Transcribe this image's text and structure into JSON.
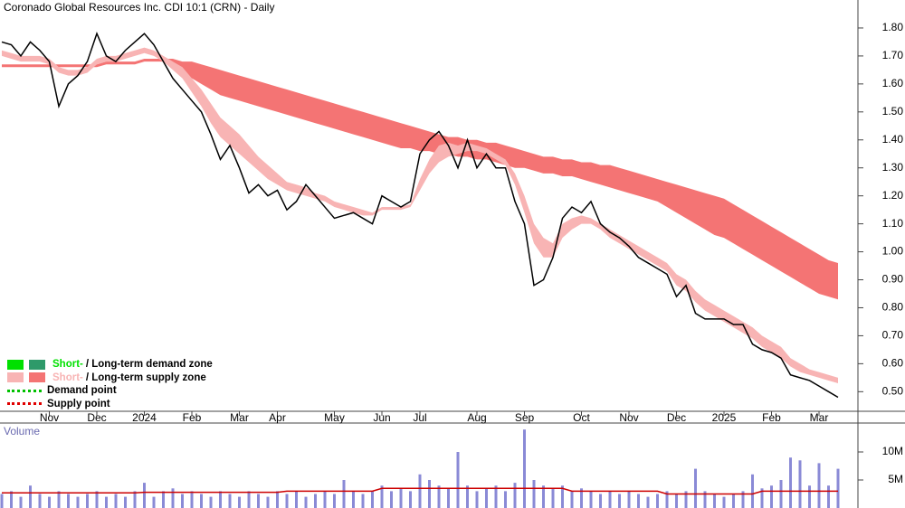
{
  "chart_data": [
    {
      "type": "line",
      "title": "Coronado Global Resources Inc. CDI 10:1 (CRN) - Daily",
      "categories": [
        null,
        null,
        null,
        null,
        null,
        "Nov",
        null,
        null,
        null,
        null,
        "Dec",
        null,
        null,
        null,
        null,
        "2024",
        null,
        null,
        null,
        null,
        "Feb",
        null,
        null,
        null,
        null,
        "Mar",
        null,
        null,
        null,
        "Apr",
        null,
        null,
        null,
        null,
        null,
        "May",
        null,
        null,
        null,
        null,
        "Jun",
        null,
        null,
        null,
        "Jul",
        null,
        null,
        null,
        null,
        null,
        "Aug",
        null,
        null,
        null,
        null,
        "Sep",
        null,
        null,
        null,
        null,
        null,
        "Oct",
        null,
        null,
        null,
        null,
        "Nov",
        null,
        null,
        null,
        null,
        "Dec",
        null,
        null,
        null,
        null,
        "2025",
        null,
        null,
        null,
        null,
        "Feb",
        null,
        null,
        null,
        null,
        "Mar",
        null,
        null
      ],
      "close": {
        "color": "#000000",
        "values": [
          1.75,
          1.74,
          1.7,
          1.75,
          1.72,
          1.68,
          1.52,
          1.6,
          1.63,
          1.68,
          1.78,
          1.7,
          1.68,
          1.72,
          1.75,
          1.78,
          1.74,
          1.68,
          1.62,
          1.58,
          1.54,
          1.5,
          1.42,
          1.33,
          1.38,
          1.3,
          1.21,
          1.24,
          1.2,
          1.22,
          1.15,
          1.18,
          1.24,
          1.2,
          1.16,
          1.12,
          1.13,
          1.14,
          1.12,
          1.1,
          1.2,
          1.18,
          1.16,
          1.18,
          1.35,
          1.4,
          1.43,
          1.38,
          1.3,
          1.4,
          1.3,
          1.35,
          1.3,
          1.3,
          1.18,
          1.1,
          0.88,
          0.9,
          0.98,
          1.12,
          1.16,
          1.14,
          1.18,
          1.1,
          1.07,
          1.05,
          1.02,
          0.98,
          0.96,
          0.94,
          0.92,
          0.84,
          0.88,
          0.78,
          0.76,
          0.76,
          0.76,
          0.74,
          0.74,
          0.67,
          0.65,
          0.64,
          0.62,
          0.56,
          0.55,
          0.54,
          0.52,
          0.5,
          0.48
        ]
      },
      "long_band": {
        "color": "#f47474",
        "upper": [
          1.67,
          1.67,
          1.67,
          1.67,
          1.67,
          1.67,
          1.67,
          1.67,
          1.67,
          1.67,
          1.67,
          1.68,
          1.68,
          1.68,
          1.68,
          1.69,
          1.69,
          1.69,
          1.69,
          1.68,
          1.68,
          1.67,
          1.66,
          1.65,
          1.64,
          1.63,
          1.62,
          1.61,
          1.6,
          1.59,
          1.58,
          1.57,
          1.56,
          1.55,
          1.54,
          1.53,
          1.52,
          1.51,
          1.5,
          1.49,
          1.48,
          1.47,
          1.46,
          1.45,
          1.44,
          1.43,
          1.42,
          1.41,
          1.41,
          1.4,
          1.4,
          1.39,
          1.39,
          1.38,
          1.37,
          1.36,
          1.35,
          1.34,
          1.34,
          1.33,
          1.33,
          1.32,
          1.32,
          1.31,
          1.31,
          1.3,
          1.29,
          1.28,
          1.27,
          1.26,
          1.25,
          1.24,
          1.23,
          1.22,
          1.21,
          1.2,
          1.19,
          1.17,
          1.15,
          1.13,
          1.11,
          1.09,
          1.07,
          1.05,
          1.03,
          1.01,
          0.99,
          0.97,
          0.96
        ],
        "lower": [
          1.66,
          1.66,
          1.66,
          1.66,
          1.66,
          1.66,
          1.66,
          1.66,
          1.66,
          1.66,
          1.66,
          1.67,
          1.67,
          1.67,
          1.67,
          1.68,
          1.68,
          1.68,
          1.66,
          1.64,
          1.62,
          1.6,
          1.58,
          1.56,
          1.55,
          1.54,
          1.53,
          1.52,
          1.51,
          1.5,
          1.49,
          1.48,
          1.47,
          1.46,
          1.45,
          1.44,
          1.43,
          1.42,
          1.41,
          1.4,
          1.39,
          1.38,
          1.37,
          1.37,
          1.36,
          1.36,
          1.35,
          1.35,
          1.34,
          1.34,
          1.33,
          1.33,
          1.32,
          1.31,
          1.3,
          1.3,
          1.29,
          1.28,
          1.28,
          1.27,
          1.27,
          1.26,
          1.25,
          1.24,
          1.23,
          1.22,
          1.21,
          1.2,
          1.19,
          1.18,
          1.16,
          1.14,
          1.12,
          1.1,
          1.08,
          1.06,
          1.05,
          1.03,
          1.01,
          0.99,
          0.97,
          0.95,
          0.93,
          0.91,
          0.89,
          0.87,
          0.85,
          0.84,
          0.83
        ]
      },
      "short_band": {
        "color": "#f8b4b4",
        "upper": [
          1.72,
          1.71,
          1.7,
          1.7,
          1.7,
          1.69,
          1.66,
          1.65,
          1.65,
          1.66,
          1.69,
          1.7,
          1.7,
          1.71,
          1.72,
          1.73,
          1.72,
          1.7,
          1.68,
          1.66,
          1.62,
          1.58,
          1.53,
          1.48,
          1.45,
          1.42,
          1.38,
          1.34,
          1.31,
          1.28,
          1.25,
          1.24,
          1.23,
          1.21,
          1.2,
          1.18,
          1.17,
          1.16,
          1.15,
          1.14,
          1.16,
          1.16,
          1.16,
          1.17,
          1.26,
          1.33,
          1.38,
          1.39,
          1.38,
          1.39,
          1.38,
          1.37,
          1.35,
          1.33,
          1.28,
          1.2,
          1.1,
          1.05,
          1.03,
          1.1,
          1.12,
          1.13,
          1.12,
          1.1,
          1.08,
          1.06,
          1.04,
          1.02,
          1.0,
          0.98,
          0.96,
          0.92,
          0.9,
          0.86,
          0.83,
          0.81,
          0.79,
          0.77,
          0.75,
          0.73,
          0.7,
          0.68,
          0.66,
          0.62,
          0.6,
          0.58,
          0.57,
          0.56,
          0.55
        ],
        "lower": [
          1.7,
          1.69,
          1.68,
          1.68,
          1.68,
          1.67,
          1.64,
          1.63,
          1.63,
          1.64,
          1.67,
          1.68,
          1.68,
          1.69,
          1.7,
          1.71,
          1.7,
          1.68,
          1.65,
          1.62,
          1.57,
          1.52,
          1.46,
          1.41,
          1.38,
          1.35,
          1.32,
          1.29,
          1.26,
          1.24,
          1.22,
          1.21,
          1.2,
          1.19,
          1.18,
          1.16,
          1.15,
          1.14,
          1.13,
          1.13,
          1.15,
          1.15,
          1.15,
          1.16,
          1.22,
          1.28,
          1.32,
          1.34,
          1.35,
          1.36,
          1.36,
          1.35,
          1.33,
          1.31,
          1.24,
          1.14,
          1.03,
          0.98,
          0.98,
          1.05,
          1.08,
          1.1,
          1.1,
          1.08,
          1.05,
          1.03,
          1.01,
          0.99,
          0.97,
          0.95,
          0.93,
          0.88,
          0.86,
          0.82,
          0.79,
          0.77,
          0.75,
          0.73,
          0.71,
          0.69,
          0.66,
          0.64,
          0.62,
          0.59,
          0.57,
          0.56,
          0.55,
          0.54,
          0.53
        ]
      },
      "ylim": [
        0.43,
        1.9
      ],
      "yticks": [
        {
          "value": 0.5,
          "label": "0.50"
        },
        {
          "value": 0.6,
          "label": "0.60"
        },
        {
          "value": 0.7,
          "label": "0.70"
        },
        {
          "value": 0.8,
          "label": "0.80"
        },
        {
          "value": 0.9,
          "label": "0.90"
        },
        {
          "value": 1.0,
          "label": "1.00"
        },
        {
          "value": 1.1,
          "label": "1.10"
        },
        {
          "value": 1.2,
          "label": "1.20"
        },
        {
          "value": 1.3,
          "label": "1.30"
        },
        {
          "value": 1.4,
          "label": "1.40"
        },
        {
          "value": 1.5,
          "label": "1.50"
        },
        {
          "value": 1.6,
          "label": "1.60"
        },
        {
          "value": 1.7,
          "label": "1.70"
        },
        {
          "value": 1.8,
          "label": "1.80"
        }
      ],
      "legend": [
        {
          "short": "Short-",
          "rest": "/ Long-term demand zone",
          "short_color": "#00e000",
          "long_color": "#2e9a6a"
        },
        {
          "short": "Short-",
          "rest": "/ Long-term supply zone",
          "short_color": "#f8b4b4",
          "long_color": "#f47474"
        },
        {
          "label": "Demand point",
          "color": "#00c000"
        },
        {
          "label": "Supply point",
          "color": "#e00000"
        }
      ]
    },
    {
      "type": "bar",
      "title": "Volume",
      "color": "#8a8ad6",
      "values": [
        2.5,
        3,
        2,
        4,
        2.5,
        2,
        3,
        2.5,
        2,
        2.5,
        3,
        2,
        2.5,
        2,
        3,
        4.5,
        2,
        3,
        3.5,
        2.5,
        3,
        2.5,
        2,
        3,
        2.5,
        2,
        3,
        2.5,
        2,
        3,
        2.5,
        3,
        2,
        2.5,
        3,
        2.5,
        5,
        3,
        2.5,
        3,
        4,
        3,
        3.5,
        3,
        6,
        5,
        4,
        3.5,
        10,
        4,
        3,
        3.5,
        4,
        3,
        4.5,
        14,
        5,
        4,
        3.5,
        4,
        3,
        3.5,
        3,
        2.5,
        3,
        2.5,
        3,
        2.5,
        2,
        2.5,
        3,
        2.5,
        3,
        7,
        3,
        2.5,
        2,
        2.5,
        3,
        6,
        3.5,
        4,
        5,
        9,
        8.5,
        4,
        8,
        4,
        7
      ],
      "average": {
        "color": "#cc0000",
        "values": [
          2.7,
          2.7,
          2.7,
          2.7,
          2.7,
          2.7,
          2.7,
          2.7,
          2.7,
          2.7,
          2.7,
          2.7,
          2.7,
          2.7,
          2.7,
          2.8,
          2.8,
          2.8,
          2.8,
          2.8,
          2.8,
          2.8,
          2.8,
          2.8,
          2.8,
          2.8,
          2.8,
          2.8,
          2.8,
          2.8,
          3,
          3,
          3,
          3,
          3,
          3,
          3,
          3,
          3,
          3,
          3.5,
          3.5,
          3.5,
          3.5,
          3.5,
          3.5,
          3.5,
          3.5,
          3.5,
          3.5,
          3.5,
          3.5,
          3.5,
          3.5,
          3.5,
          3.5,
          3.5,
          3.5,
          3.5,
          3.5,
          3,
          3,
          3,
          3,
          3,
          3,
          3,
          3,
          3,
          3,
          2.5,
          2.5,
          2.5,
          2.5,
          2.5,
          2.5,
          2.5,
          2.5,
          2.5,
          2.5,
          3,
          3,
          3,
          3,
          3,
          3,
          3,
          3,
          3
        ]
      },
      "ylim": [
        0,
        15
      ],
      "yticks": [
        {
          "value": 5,
          "label": "5M"
        },
        {
          "value": 10,
          "label": "10M"
        }
      ]
    }
  ]
}
